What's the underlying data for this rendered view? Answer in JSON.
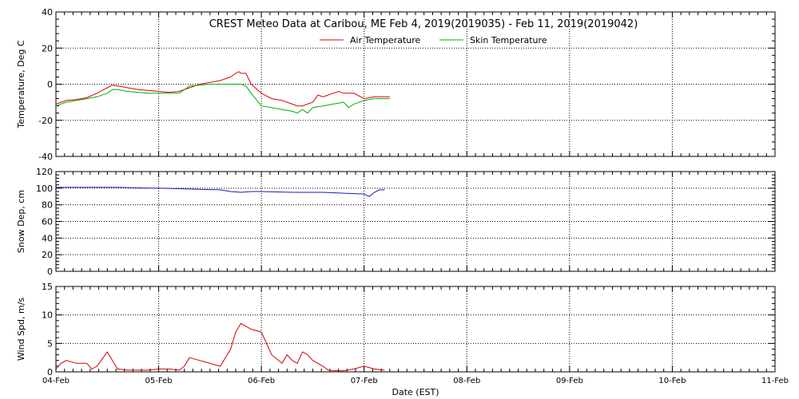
{
  "title": "CREST Meteo Data at Caribou, ME   Feb  4, 2019(2019035) - Feb 11, 2019(2019042)",
  "xlabel": "Date (EST)",
  "x_ticks": [
    "04-Feb",
    "05-Feb",
    "06-Feb",
    "07-Feb",
    "08-Feb",
    "09-Feb",
    "10-Feb",
    "11-Feb"
  ],
  "chart_data": [
    {
      "type": "line",
      "panel": "temperature",
      "ylabel": "Temperature, Deg C",
      "xlim": [
        0,
        7
      ],
      "ylim": [
        -40,
        40
      ],
      "yticks": [
        -40,
        -20,
        0,
        20,
        40
      ],
      "grid": true,
      "legend": "top-center",
      "series": [
        {
          "name": "Air Temperature",
          "color": "#e00000",
          "x": [
            0,
            0.1,
            0.2,
            0.3,
            0.4,
            0.5,
            0.55,
            0.6,
            0.65,
            0.7,
            0.8,
            0.9,
            1.0,
            1.1,
            1.2,
            1.3,
            1.4,
            1.5,
            1.6,
            1.7,
            1.75,
            1.78,
            1.8,
            1.85,
            1.9,
            2.0,
            2.1,
            2.2,
            2.3,
            2.35,
            2.4,
            2.5,
            2.55,
            2.6,
            2.7,
            2.75,
            2.8,
            2.9,
            3.0,
            3.1,
            3.2,
            3.25
          ],
          "y": [
            -11,
            -9,
            -8.5,
            -7.5,
            -5,
            -2,
            -0.5,
            -1,
            -1.5,
            -2,
            -3,
            -3.5,
            -4,
            -4.5,
            -4,
            -2,
            0,
            1,
            2,
            4,
            6,
            7,
            6,
            6,
            0,
            -5,
            -8,
            -9,
            -11,
            -12,
            -12,
            -10,
            -6,
            -7,
            -5,
            -4,
            -5,
            -5,
            -8,
            -7,
            -7,
            -7
          ]
        },
        {
          "name": "Skin Temperature",
          "color": "#00b000",
          "x": [
            0,
            0.1,
            0.2,
            0.3,
            0.4,
            0.5,
            0.55,
            0.6,
            0.7,
            0.8,
            0.9,
            1.0,
            1.1,
            1.2,
            1.3,
            1.5,
            1.7,
            1.8,
            1.85,
            1.9,
            2.0,
            2.1,
            2.2,
            2.3,
            2.35,
            2.4,
            2.45,
            2.5,
            2.6,
            2.7,
            2.8,
            2.85,
            2.9,
            3.0,
            3.1,
            3.2,
            3.25
          ],
          "y": [
            -12,
            -10,
            -9,
            -8,
            -7,
            -5,
            -3,
            -3,
            -4,
            -4.5,
            -5,
            -5,
            -5,
            -5,
            -1,
            0,
            0,
            0,
            -1,
            -5,
            -12,
            -13,
            -14,
            -15,
            -16,
            -14,
            -16,
            -13,
            -12,
            -11,
            -10,
            -13,
            -11,
            -9,
            -8,
            -8,
            -8
          ]
        }
      ]
    },
    {
      "type": "line",
      "panel": "snow-depth",
      "ylabel": "Snow Dep, cm",
      "xlim": [
        0,
        7
      ],
      "ylim": [
        0,
        120
      ],
      "yticks": [
        0,
        20,
        40,
        60,
        80,
        100,
        120
      ],
      "grid": true,
      "series": [
        {
          "color": "#1020b0",
          "x": [
            0,
            0.3,
            0.6,
            0.9,
            1.0,
            1.3,
            1.6,
            1.7,
            1.8,
            1.9,
            2.0,
            2.3,
            2.6,
            2.8,
            3.0,
            3.05,
            3.1,
            3.15,
            3.2
          ],
          "y": [
            101,
            101,
            101,
            100,
            100,
            99,
            98,
            96,
            95,
            96,
            96,
            95,
            95,
            94,
            93,
            90,
            95,
            98,
            98
          ]
        }
      ]
    },
    {
      "type": "line",
      "panel": "wind-speed",
      "ylabel": "Wind Spd, m/s",
      "xlim": [
        0,
        7
      ],
      "ylim": [
        0,
        15
      ],
      "yticks": [
        0,
        5,
        10,
        15
      ],
      "grid": true,
      "series": [
        {
          "color": "#d00000",
          "x": [
            0,
            0.05,
            0.1,
            0.2,
            0.3,
            0.35,
            0.4,
            0.5,
            0.55,
            0.6,
            0.7,
            0.8,
            0.9,
            1.0,
            1.1,
            1.2,
            1.25,
            1.3,
            1.4,
            1.5,
            1.6,
            1.7,
            1.75,
            1.8,
            1.85,
            1.9,
            2.0,
            2.05,
            2.1,
            2.2,
            2.25,
            2.3,
            2.35,
            2.4,
            2.45,
            2.5,
            2.6,
            2.65,
            2.7,
            2.8,
            2.9,
            3.0,
            3.1,
            3.2
          ],
          "y": [
            0.5,
            1.5,
            2,
            1.5,
            1.5,
            0.5,
            1,
            3.5,
            2,
            0.5,
            0.3,
            0.3,
            0.3,
            0.5,
            0.5,
            0.3,
            1,
            2.5,
            2,
            1.5,
            1,
            4,
            7,
            8.5,
            8,
            7.5,
            7,
            5,
            3,
            1.5,
            3,
            2,
            1.5,
            3.5,
            3,
            2,
            1,
            0.3,
            0.2,
            0.2,
            0.5,
            1,
            0.5,
            0.3
          ]
        }
      ]
    }
  ]
}
